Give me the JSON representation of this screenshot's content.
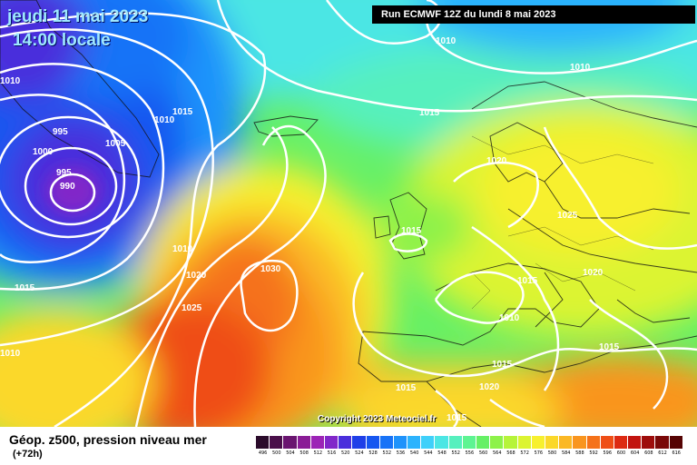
{
  "header": {
    "date_label": "jeudi 11 mai 2023",
    "time_label": "14:00 locale",
    "run_label": "Run ECMWF 12Z du lundi 8 mai 2023"
  },
  "copyright": "Copyright 2023 Meteociel.fr",
  "footer": {
    "title": "Géop. z500, pression niveau mer",
    "subtitle": "(+72h)"
  },
  "legend": {
    "ticks": [
      "496",
      "500",
      "504",
      "508",
      "512",
      "516",
      "520",
      "524",
      "528",
      "532",
      "536",
      "540",
      "544",
      "548",
      "552",
      "556",
      "560",
      "564",
      "568",
      "572",
      "576",
      "580",
      "584",
      "588",
      "592",
      "596",
      "600",
      "604",
      "608",
      "612",
      "616"
    ],
    "colors": [
      "#2b0b2b",
      "#4a0f4a",
      "#6a1570",
      "#8a1c96",
      "#9c24b6",
      "#8127c9",
      "#4a2fdc",
      "#1f3fe8",
      "#1656f0",
      "#1873f7",
      "#1f93fb",
      "#2cb3fd",
      "#3fd0fa",
      "#4ce6e4",
      "#56f0be",
      "#5ef492",
      "#66f066",
      "#8df24a",
      "#b6f43a",
      "#dcf432",
      "#f7f02e",
      "#fbd82a",
      "#fbb825",
      "#f9951f",
      "#f5721a",
      "#ef4e16",
      "#dd2a12",
      "#c2140f",
      "#9e0d0c",
      "#7a0808",
      "#560404"
    ]
  },
  "isobars": [
    "1010",
    "995",
    "1000",
    "995",
    "990",
    "1010",
    "1005",
    "1015",
    "1010",
    "1015",
    "1010",
    "1020",
    "1030",
    "1025",
    "1015",
    "1020",
    "1020",
    "1025",
    "1015",
    "1010",
    "1015",
    "1015",
    "1015",
    "1020",
    "1010",
    "1010",
    "1015",
    "1015"
  ],
  "colors": {
    "run_bg": "#000000",
    "title_text": "#9fe8ff",
    "isobar": "#ffffff"
  }
}
